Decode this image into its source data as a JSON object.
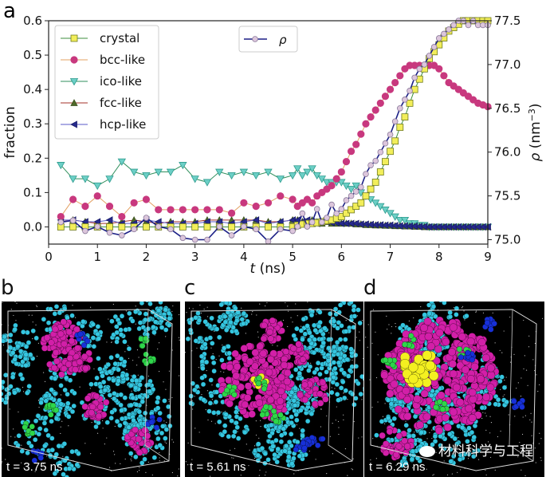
{
  "panel_a": {
    "letter": "a"
  },
  "chart_data": {
    "type": "line",
    "xlabel_italic": "t",
    "xlabel_unit": " (ns)",
    "ylabel": "fraction",
    "y2label_symbol": "ρ",
    "y2label_unit": " (nm",
    "y2label_exp": "−3",
    "y2label_close": ")",
    "xlim": [
      0,
      9
    ],
    "ylim": [
      -0.05,
      0.6
    ],
    "y2lim": [
      74.95,
      77.5
    ],
    "xticks": [
      0,
      1,
      2,
      3,
      4,
      5,
      6,
      7,
      8,
      9
    ],
    "yticks": [
      "0.0",
      "0.1",
      "0.2",
      "0.3",
      "0.4",
      "0.5",
      "0.6"
    ],
    "y2ticks": [
      "75.0",
      "75.5",
      "76.0",
      "76.5",
      "77.0",
      "77.5"
    ],
    "grid": false,
    "legend_placement": "top-left",
    "legend2_placement": "top-center",
    "x": [
      0.25,
      0.5,
      0.75,
      1.0,
      1.25,
      1.5,
      1.75,
      2.0,
      2.25,
      2.5,
      2.75,
      3.0,
      3.25,
      3.5,
      3.75,
      4.0,
      4.25,
      4.5,
      4.75,
      5.0,
      5.1,
      5.2,
      5.3,
      5.4,
      5.5,
      5.6,
      5.7,
      5.8,
      5.9,
      6.0,
      6.1,
      6.2,
      6.3,
      6.4,
      6.5,
      6.6,
      6.7,
      6.8,
      6.9,
      7.0,
      7.1,
      7.2,
      7.3,
      7.4,
      7.5,
      7.6,
      7.7,
      7.8,
      7.9,
      8.0,
      8.1,
      8.2,
      8.3,
      8.4,
      8.5,
      8.6,
      8.7,
      8.8,
      8.9,
      9.0
    ],
    "series": [
      {
        "name": "crystal",
        "axis": "left",
        "marker": "square",
        "color": "#f2ee5a",
        "edge": "#6f7a1e",
        "line": "#3d8f3d",
        "values": [
          0,
          0,
          0,
          0,
          0,
          0,
          0,
          0,
          0,
          0,
          0,
          0,
          0,
          0,
          0,
          0,
          0,
          0,
          0,
          0,
          0.005,
          0.008,
          0.01,
          0.01,
          0.012,
          0.015,
          0.018,
          0.02,
          0.025,
          0.03,
          0.04,
          0.05,
          0.06,
          0.07,
          0.09,
          0.11,
          0.13,
          0.16,
          0.19,
          0.22,
          0.25,
          0.29,
          0.32,
          0.36,
          0.4,
          0.43,
          0.46,
          0.49,
          0.51,
          0.53,
          0.55,
          0.57,
          0.58,
          0.59,
          0.6,
          0.6,
          0.6,
          0.6,
          0.6,
          0.6
        ]
      },
      {
        "name": "bcc-like",
        "axis": "left",
        "marker": "circle",
        "color": "#c8387e",
        "edge": "#c8387e",
        "line": "#e3a062",
        "values": [
          0.03,
          0.08,
          0.06,
          0.09,
          0.06,
          0.03,
          0.07,
          0.08,
          0.05,
          0.05,
          0.05,
          0.05,
          0.05,
          0.05,
          0.04,
          0.07,
          0.06,
          0.07,
          0.09,
          0.08,
          0.06,
          0.07,
          0.08,
          0.07,
          0.09,
          0.1,
          0.11,
          0.12,
          0.14,
          0.16,
          0.19,
          0.22,
          0.24,
          0.27,
          0.3,
          0.32,
          0.34,
          0.36,
          0.38,
          0.4,
          0.42,
          0.44,
          0.46,
          0.47,
          0.47,
          0.47,
          0.47,
          0.47,
          0.47,
          0.46,
          0.44,
          0.42,
          0.41,
          0.4,
          0.39,
          0.38,
          0.37,
          0.36,
          0.355,
          0.35
        ]
      },
      {
        "name": "ico-like",
        "axis": "left",
        "marker": "triangle-down",
        "color": "#6ccfc6",
        "edge": "#2f9c8e",
        "line": "#2f8f5c",
        "values": [
          0.18,
          0.14,
          0.14,
          0.12,
          0.14,
          0.19,
          0.16,
          0.15,
          0.16,
          0.16,
          0.18,
          0.14,
          0.13,
          0.16,
          0.15,
          0.16,
          0.15,
          0.16,
          0.14,
          0.15,
          0.17,
          0.15,
          0.16,
          0.17,
          0.15,
          0.14,
          0.13,
          0.13,
          0.13,
          0.13,
          0.12,
          0.11,
          0.12,
          0.1,
          0.09,
          0.08,
          0.07,
          0.06,
          0.05,
          0.04,
          0.03,
          0.02,
          0.02,
          0.01,
          0.01,
          0.005,
          0.005,
          0,
          0,
          0,
          0,
          0,
          0,
          0,
          0,
          0,
          0,
          0,
          0,
          0
        ]
      },
      {
        "name": "fcc-like",
        "axis": "left",
        "marker": "triangle-up",
        "color": "#4f6a2a",
        "edge": "#3a4f1c",
        "line": "#a3302a",
        "values": [
          0.015,
          0.02,
          0.015,
          0.01,
          0.01,
          0.015,
          0.02,
          0.015,
          0.01,
          0.015,
          0.015,
          0.015,
          0.02,
          0.02,
          0.02,
          0.02,
          0.02,
          0.015,
          0.015,
          0.02,
          0.02,
          0.015,
          0.015,
          0.02,
          0.015,
          0.01,
          0.015,
          0.01,
          0.01,
          0.01,
          0.01,
          0.01,
          0.008,
          0.008,
          0.006,
          0.006,
          0.005,
          0.005,
          0.004,
          0.004,
          0.003,
          0.003,
          0.002,
          0.002,
          0.001,
          0.001,
          0,
          0,
          0,
          0,
          0,
          0,
          0,
          0,
          0,
          0,
          0,
          0,
          0,
          0
        ]
      },
      {
        "name": "hcp-like",
        "axis": "left",
        "marker": "triangle-left",
        "color": "#262a8c",
        "edge": "#1a1d6a",
        "line": "#5a5ac8",
        "values": [
          0.02,
          0.02,
          0.015,
          0.015,
          0.02,
          0.01,
          0.01,
          0.02,
          0.015,
          0.01,
          0.01,
          0.01,
          0.015,
          0.015,
          0.01,
          0.015,
          0.02,
          0.01,
          0.015,
          0.02,
          0.02,
          0.015,
          0.02,
          0.015,
          0.01,
          0.015,
          0.015,
          0.012,
          0.012,
          0.01,
          0.01,
          0.01,
          0.01,
          0.008,
          0.008,
          0.007,
          0.006,
          0.006,
          0.005,
          0.005,
          0.004,
          0.003,
          0.003,
          0.002,
          0.002,
          0.001,
          0.001,
          0,
          0,
          0,
          0,
          0,
          0,
          0,
          0,
          0,
          0,
          0,
          0,
          0
        ]
      },
      {
        "name": "ρ",
        "axis": "right",
        "marker": "circle-small",
        "color": "#dcc6dc",
        "edge": "#8a7a9a",
        "line": "#1b1f86",
        "values": [
          75.2,
          75.22,
          75.1,
          75.15,
          75.08,
          75.05,
          75.12,
          75.25,
          75.15,
          75.12,
          75.02,
          75.0,
          75.0,
          75.15,
          75.05,
          75.15,
          75.12,
          74.98,
          75.12,
          75.1,
          75.15,
          75.3,
          75.15,
          75.2,
          75.35,
          75.2,
          75.25,
          75.4,
          75.3,
          75.35,
          75.45,
          75.5,
          75.55,
          75.6,
          75.75,
          75.85,
          75.9,
          76.0,
          76.1,
          76.2,
          76.35,
          76.5,
          76.6,
          76.7,
          76.85,
          76.95,
          77.0,
          77.1,
          77.2,
          77.3,
          77.35,
          77.4,
          77.45,
          77.5,
          77.5,
          77.45,
          77.5,
          77.45,
          77.45,
          77.45
        ]
      }
    ]
  },
  "snapshots": [
    {
      "letter": "b",
      "time": "t = 3.75 ns"
    },
    {
      "letter": "c",
      "time": "t = 5.61 ns"
    },
    {
      "letter": "d",
      "time": "t = 6.29 ns"
    }
  ],
  "watermark": "材料科学与工程",
  "colors": {
    "cyan": "#35c6e0",
    "magenta": "#d21fa8",
    "green": "#2ed64a",
    "blue": "#1730d8",
    "yellow": "#f4f020"
  }
}
